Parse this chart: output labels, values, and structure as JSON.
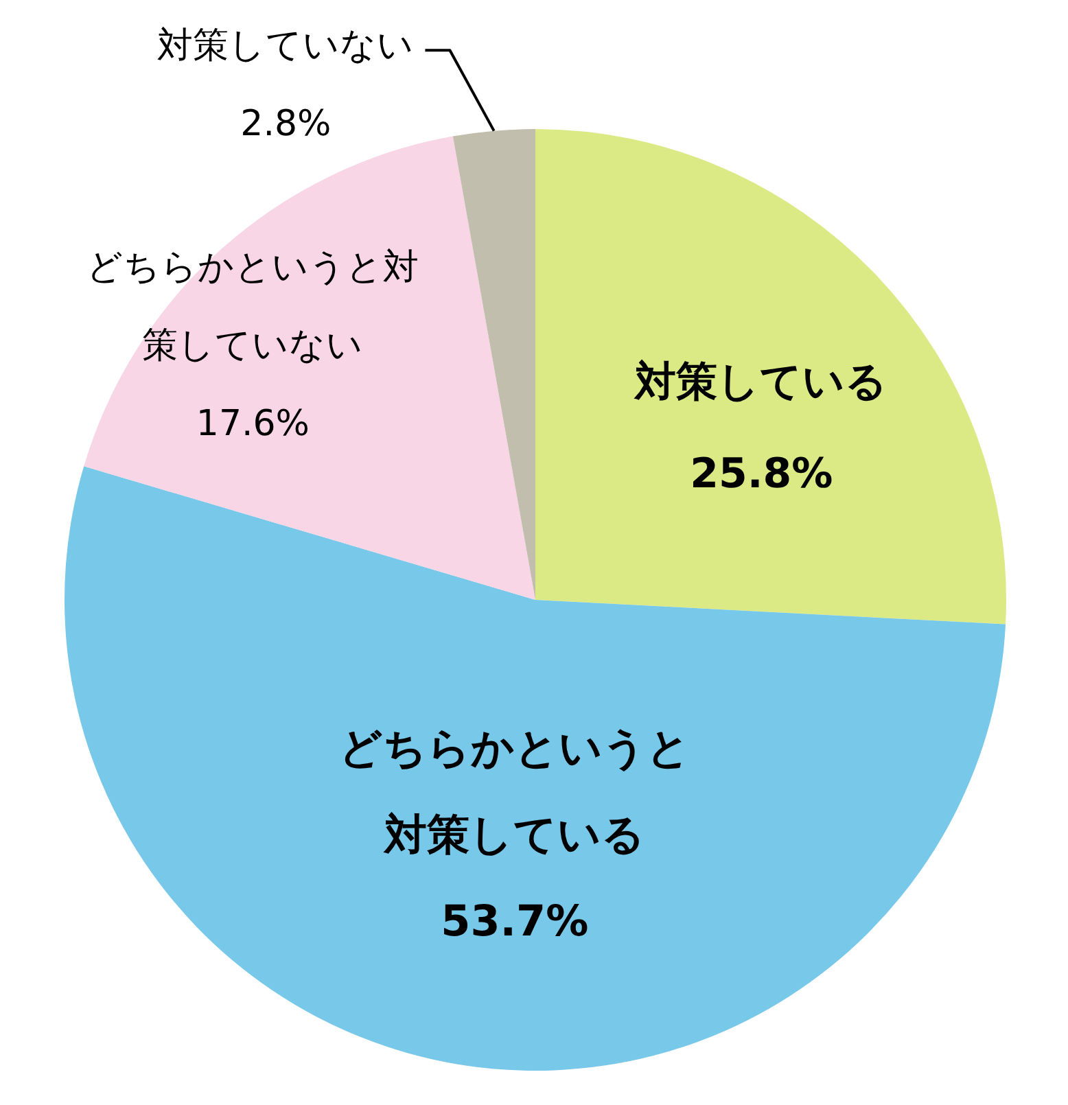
{
  "chart_data": {
    "type": "pie",
    "categories": [
      "対策している",
      "どちらかというと対策している",
      "どちらかというと対策していない",
      "対策していない"
    ],
    "values": [
      25.8,
      53.7,
      17.6,
      2.8
    ],
    "colors": [
      "#dcea86",
      "#78c8ea",
      "#f8d6e5",
      "#c2bead"
    ],
    "value_labels": [
      "25.8%",
      "53.7%",
      "17.6%",
      "2.8%"
    ]
  }
}
